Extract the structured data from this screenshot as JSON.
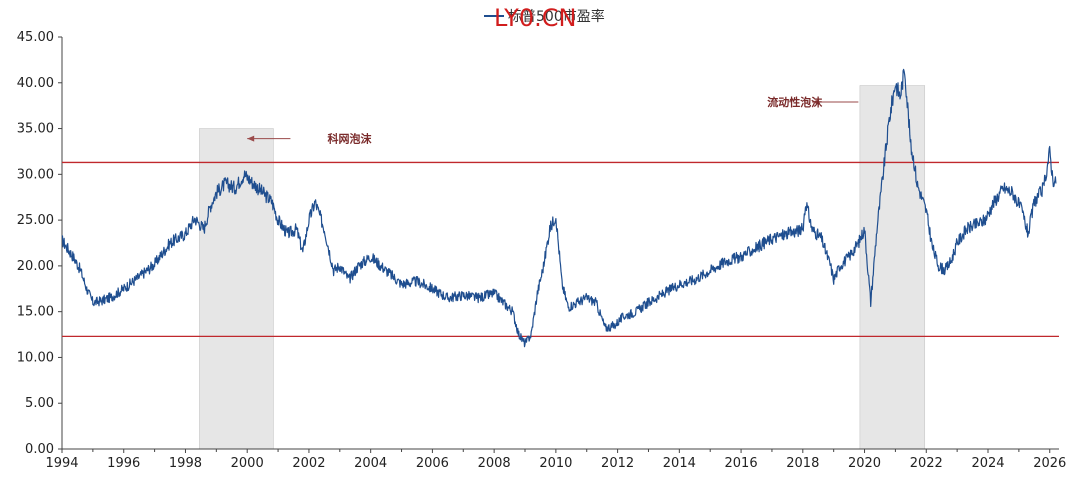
{
  "chart_data": {
    "type": "line",
    "title": "",
    "legend": [
      "标普500市盈率"
    ],
    "legend_position": "top-center",
    "xlabel": "",
    "ylabel": "",
    "xlim": [
      1994.0,
      2026.3
    ],
    "ylim": [
      0,
      45
    ],
    "y_ticks": [
      "0.00",
      "5.00",
      "10.00",
      "15.00",
      "20.00",
      "25.00",
      "30.00",
      "35.00",
      "40.00",
      "45.00"
    ],
    "x_ticks": [
      "1994",
      "1996",
      "1998",
      "2000",
      "2002",
      "2004",
      "2006",
      "2008",
      "2010",
      "2012",
      "2014",
      "2016",
      "2018",
      "2020",
      "2022",
      "2024",
      "2026"
    ],
    "grid": false,
    "series": [
      {
        "name": "标普500市盈率",
        "color": "#1f4e8f",
        "points": [
          [
            1994.0,
            22.8
          ],
          [
            1994.2,
            21.8
          ],
          [
            1994.4,
            20.8
          ],
          [
            1994.6,
            19.5
          ],
          [
            1994.8,
            17.5
          ],
          [
            1995.0,
            16.0
          ],
          [
            1995.3,
            16.2
          ],
          [
            1995.6,
            16.6
          ],
          [
            1996.0,
            17.5
          ],
          [
            1996.5,
            18.8
          ],
          [
            1997.0,
            20.2
          ],
          [
            1997.5,
            22.5
          ],
          [
            1998.0,
            23.5
          ],
          [
            1998.3,
            25.2
          ],
          [
            1998.6,
            24.0
          ],
          [
            1998.8,
            26.5
          ],
          [
            1999.0,
            28.0
          ],
          [
            1999.3,
            29.0
          ],
          [
            1999.6,
            28.5
          ],
          [
            1999.9,
            30.0
          ],
          [
            2000.2,
            29.0
          ],
          [
            2000.5,
            28.0
          ],
          [
            2000.8,
            27.0
          ],
          [
            2001.0,
            25.0
          ],
          [
            2001.3,
            23.5
          ],
          [
            2001.6,
            24.0
          ],
          [
            2001.8,
            21.5
          ],
          [
            2002.0,
            25.0
          ],
          [
            2002.2,
            27.0
          ],
          [
            2002.5,
            24.0
          ],
          [
            2002.8,
            19.5
          ],
          [
            2003.0,
            20.0
          ],
          [
            2003.3,
            18.5
          ],
          [
            2003.6,
            20.0
          ],
          [
            2004.0,
            21.0
          ],
          [
            2004.5,
            19.5
          ],
          [
            2005.0,
            18.0
          ],
          [
            2005.5,
            18.3
          ],
          [
            2006.0,
            17.5
          ],
          [
            2006.5,
            16.5
          ],
          [
            2007.0,
            16.8
          ],
          [
            2007.5,
            16.5
          ],
          [
            2008.0,
            17.0
          ],
          [
            2008.3,
            16.0
          ],
          [
            2008.6,
            15.0
          ],
          [
            2008.8,
            12.5
          ],
          [
            2009.0,
            11.5
          ],
          [
            2009.2,
            12.5
          ],
          [
            2009.4,
            17.0
          ],
          [
            2009.6,
            20.0
          ],
          [
            2009.8,
            24.0
          ],
          [
            2010.0,
            25.5
          ],
          [
            2010.2,
            18.0
          ],
          [
            2010.4,
            15.5
          ],
          [
            2010.7,
            16.0
          ],
          [
            2011.0,
            16.5
          ],
          [
            2011.3,
            16.0
          ],
          [
            2011.6,
            13.2
          ],
          [
            2011.9,
            13.5
          ],
          [
            2012.2,
            14.5
          ],
          [
            2012.6,
            15.0
          ],
          [
            2013.0,
            16.0
          ],
          [
            2013.5,
            17.0
          ],
          [
            2014.0,
            18.0
          ],
          [
            2014.5,
            18.5
          ],
          [
            2015.0,
            19.5
          ],
          [
            2015.5,
            20.5
          ],
          [
            2016.0,
            21.0
          ],
          [
            2016.5,
            22.0
          ],
          [
            2017.0,
            23.0
          ],
          [
            2017.5,
            23.5
          ],
          [
            2018.0,
            24.0
          ],
          [
            2018.1,
            27.0
          ],
          [
            2018.3,
            24.0
          ],
          [
            2018.6,
            23.0
          ],
          [
            2018.9,
            20.0
          ],
          [
            2019.0,
            18.5
          ],
          [
            2019.2,
            20.0
          ],
          [
            2019.5,
            21.0
          ],
          [
            2019.8,
            22.5
          ],
          [
            2020.0,
            24.0
          ],
          [
            2020.2,
            16.0
          ],
          [
            2020.4,
            24.0
          ],
          [
            2020.6,
            30.0
          ],
          [
            2020.8,
            36.0
          ],
          [
            2021.0,
            40.0
          ],
          [
            2021.15,
            38.5
          ],
          [
            2021.3,
            41.5
          ],
          [
            2021.5,
            33.0
          ],
          [
            2021.6,
            31.5
          ],
          [
            2021.7,
            29.0
          ],
          [
            2021.9,
            27.0
          ],
          [
            2022.0,
            26.0
          ],
          [
            2022.2,
            22.0
          ],
          [
            2022.4,
            20.0
          ],
          [
            2022.6,
            19.5
          ],
          [
            2022.8,
            20.5
          ],
          [
            2023.0,
            22.5
          ],
          [
            2023.3,
            24.0
          ],
          [
            2023.6,
            24.5
          ],
          [
            2023.9,
            25.0
          ],
          [
            2024.2,
            27.0
          ],
          [
            2024.5,
            28.5
          ],
          [
            2024.8,
            28.0
          ],
          [
            2025.1,
            26.0
          ],
          [
            2025.3,
            23.5
          ],
          [
            2025.5,
            27.0
          ],
          [
            2025.8,
            28.5
          ],
          [
            2026.0,
            32.5
          ],
          [
            2026.1,
            29.5
          ],
          [
            2026.2,
            29.0
          ]
        ]
      }
    ],
    "reference_lines": [
      {
        "y": 31.3,
        "color": "#c0282d"
      },
      {
        "y": 12.3,
        "color": "#c0282d"
      }
    ],
    "shaded_regions": [
      {
        "x0": 1998.45,
        "x1": 2000.85,
        "y0": 0,
        "y1": 35,
        "color": "#e6e6e6"
      },
      {
        "x0": 2019.85,
        "x1": 2021.95,
        "y0": 0,
        "y1": 39.7,
        "color": "#e6e6e6"
      }
    ],
    "annotations": [
      {
        "text": "科网泡沫",
        "x": 2002.6,
        "y": 33.9,
        "arrow_from_x": 2001.4,
        "arrow_to_x": 2000.0,
        "side": "right"
      },
      {
        "text": "流动性泡沫",
        "x": 2017.4,
        "y": 37.9,
        "arrow_from_x": 2019.8,
        "arrow_to_x": 2018.3,
        "side": "left"
      }
    ]
  },
  "watermark": "LY0.CN"
}
